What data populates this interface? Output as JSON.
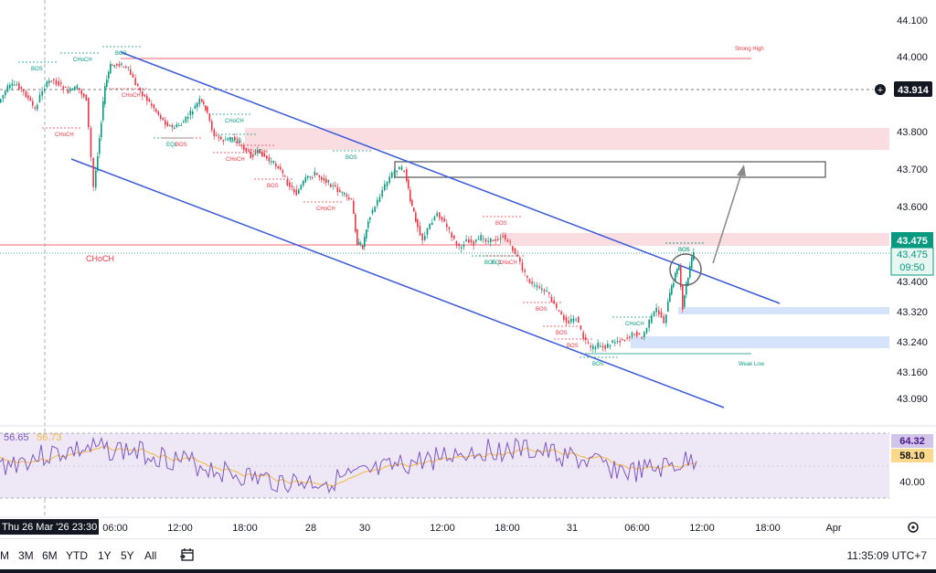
{
  "chart_data": {
    "type": "candlestick",
    "price_axis": {
      "ticks": [
        "44.100",
        "44.000",
        "43.914",
        "43.800",
        "43.700",
        "43.600",
        "43.475",
        "43.400",
        "43.320",
        "43.240",
        "43.160",
        "43.090"
      ],
      "current_price": "43.914",
      "last_price": "43.475",
      "last_price_label": "43.475",
      "countdown": "09:50"
    },
    "time_axis": {
      "ticks": [
        "06:00",
        "12:00",
        "18:00",
        "28",
        "30",
        "12:00",
        "18:00",
        "31",
        "06:00",
        "12:00",
        "18:00",
        "Apr"
      ],
      "crosshair_label": "Thu 26 Mar '26  23:30"
    },
    "annotations": {
      "strong_high": "Strong High",
      "weak_low": "Weak Low",
      "choch_large": "CHoCH",
      "labels": [
        "BOS",
        "CHoCH",
        "CHoCH",
        "BOS",
        "CHoCH",
        "EQL",
        "BOS",
        "CHoCH",
        "BOS",
        "CHoCH",
        "CHoCH",
        "BOS",
        "BOS",
        "CHoCH",
        "BOS",
        "BOS",
        "EQL",
        "CHoCH",
        "BOS",
        "BOS",
        "BOS",
        "BOS",
        "CHoCH",
        "BOS",
        "BOS"
      ]
    },
    "rsi": {
      "values_label_left": "56.65",
      "ma_label_left": "56.73",
      "rsi_last": "64.32",
      "ma_last": "58.10",
      "level_mid": "40.00"
    },
    "colors": {
      "up": "#089981",
      "down": "#f23645",
      "channel": "#3b5bdb",
      "rsi": "#7e57c2",
      "rsi_ma": "#f5b83d",
      "supply": "#f8d7da",
      "demand": "#d6e4fb"
    }
  },
  "bottom_bar": {
    "ranges": [
      "M",
      "3M",
      "6M",
      "YTD",
      "1Y",
      "5Y",
      "All"
    ],
    "clock": "11:35:09 UTC+7"
  }
}
